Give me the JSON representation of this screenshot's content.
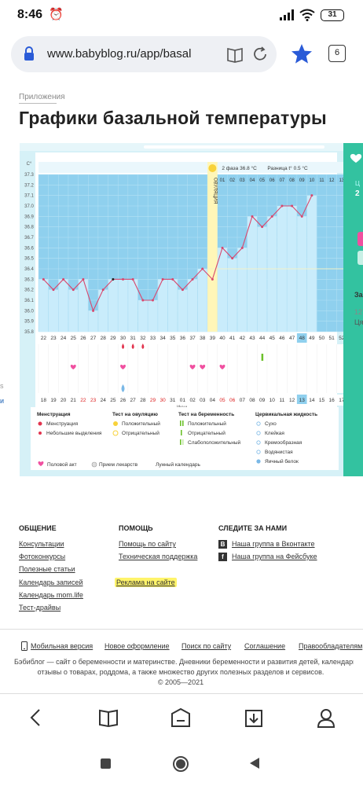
{
  "status_bar": {
    "time": "8:46",
    "battery": "31"
  },
  "browser": {
    "url": "www.babyblog.ru/app/basal",
    "tab_count": "6"
  },
  "page": {
    "breadcrumb": "Приложения",
    "title": "Графики базальной температуры"
  },
  "chart_data": {
    "type": "line",
    "title": "",
    "ylabel": "C°",
    "ylim": [
      35.8,
      37.3
    ],
    "y_ticks": [
      "37.3",
      "37.2",
      "37.1",
      "37.0",
      "36.9",
      "36.8",
      "36.7",
      "36.6",
      "36.5",
      "36.4",
      "36.3",
      "36.2",
      "36.1",
      "36.0",
      "35.9",
      "35.8"
    ],
    "cycle_days": [
      "22",
      "23",
      "24",
      "25",
      "26",
      "27",
      "28",
      "29",
      "30",
      "31",
      "32",
      "33",
      "34",
      "35",
      "36",
      "37",
      "38",
      "39",
      "40",
      "41",
      "42",
      "43",
      "44",
      "45",
      "46",
      "47",
      "48",
      "49",
      "50",
      "51",
      "52"
    ],
    "dates": [
      "18",
      "19",
      "20",
      "21",
      "22",
      "23",
      "24",
      "25",
      "26",
      "27",
      "28",
      "29",
      "30",
      "31",
      "01",
      "02",
      "03",
      "04",
      "05",
      "06",
      "07",
      "08",
      "09",
      "10",
      "11",
      "12",
      "13",
      "14",
      "15",
      "16",
      "17"
    ],
    "month_label": "Июнь",
    "second_phase_days": [
      "01",
      "02",
      "03",
      "04",
      "05",
      "06",
      "07",
      "08",
      "09",
      "10",
      "11",
      "12",
      "13",
      "14"
    ],
    "ovulation_label": "ОВУЛЯЦИЯ",
    "phase_info": "2 фаза 36.8 °C",
    "diff_info": "Разница t° 0.5 °C",
    "series": [
      {
        "values": [
          36.3,
          36.2,
          36.3,
          36.2,
          36.3,
          36.0,
          36.2,
          36.3,
          36.3,
          36.3,
          36.1,
          36.1,
          36.3,
          36.3,
          36.2,
          36.3,
          36.4,
          36.3,
          36.6,
          36.5,
          36.6,
          36.9,
          36.8,
          36.9,
          37.0,
          37.0,
          36.9,
          37.1,
          null,
          null,
          null
        ]
      }
    ],
    "ovulation_index": 17,
    "highlight_index": 26,
    "drops_indices": [
      8,
      9,
      10
    ],
    "hearts_indices": [
      3,
      8,
      15,
      16,
      18
    ],
    "spot_index": 8,
    "bar_index": 22
  },
  "legend": {
    "menstruation_title": "Менструация",
    "menstruation_items": [
      "Менструация",
      "Небольшие выделения"
    ],
    "ovulation_test_title": "Тест на овуляцию",
    "ovulation_test_items": [
      "Положительный",
      "Отрицательный"
    ],
    "pregnancy_test_title": "Тест на беременность",
    "pregnancy_test_items": [
      "Положительный",
      "Отрицательный",
      "Слабоположительный"
    ],
    "cervical_title": "Цервикальная жидкость",
    "cervical_items": [
      "Сухо",
      "Клейкая",
      "Кремообразная",
      "Водянистая",
      "Яичный белок"
    ],
    "bottom_items": [
      "Половой акт",
      "Прием лекарств",
      "Лунный календарь"
    ]
  },
  "side_fragments": {
    "left_a": "s",
    "left_b": "и",
    "right_a": "За",
    "right_b": "12",
    "right_c": "Ця",
    "right_d": "Ц",
    "right_e": "2"
  },
  "footer": {
    "col1_title": "ОБЩЕНИЕ",
    "col1_links": [
      "Консультации",
      "Фотоконкурсы",
      "Полезные статьи",
      "Календарь записей",
      "Календарь mom.life",
      "Тест-драйвы"
    ],
    "col2_title": "ПОМОЩЬ",
    "col2_links": [
      "Помощь по сайту",
      "Техническая поддержка",
      "Реклама на сайте"
    ],
    "col3_title": "СЛЕДИТЕ ЗА НАМИ",
    "col3_links": [
      "Наша группа в Вконтакте",
      "Наша группа на Фейсбуке"
    ],
    "bottom_links": [
      "Мобильная версия",
      "Новое оформление",
      "Поиск по сайту",
      "Соглашение",
      "Правообладателям"
    ],
    "about_line1": "Бэбиблог — сайт о беременности и материнстве. Дневники беременности и развития детей, календарь беременн",
    "about_line2": "отзывы о товарах, роддома, а также множество других полезных разделов и сервисов.",
    "copyright": "© 2005—2021"
  }
}
